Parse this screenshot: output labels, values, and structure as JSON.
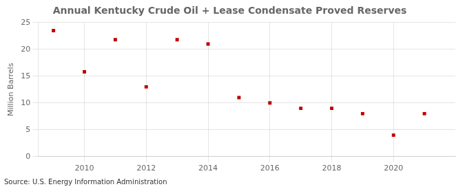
{
  "chart_data": {
    "type": "scatter",
    "title": "Annual Kentucky Crude Oil + Lease Condensate Proved Reserves",
    "ylabel": "Million Barrels",
    "annotation": "Source: U.S. Energy Information Administration",
    "x": [
      2009,
      2010,
      2011,
      2012,
      2013,
      2014,
      2015,
      2016,
      2017,
      2018,
      2019,
      2020,
      2021
    ],
    "values": [
      23.5,
      15.8,
      21.8,
      13.0,
      21.8,
      21.0,
      11.0,
      10.0,
      9.0,
      9.0,
      8.0,
      4.0,
      8.0
    ],
    "color": "#c00000",
    "marker": "square",
    "xlim": [
      2008.5,
      2022.0
    ],
    "xticks": [
      2010,
      2012,
      2014,
      2016,
      2018,
      2020
    ],
    "ylim": [
      0,
      25
    ],
    "yticks": [
      0,
      5,
      10,
      15,
      20,
      25
    ],
    "grid": true
  }
}
